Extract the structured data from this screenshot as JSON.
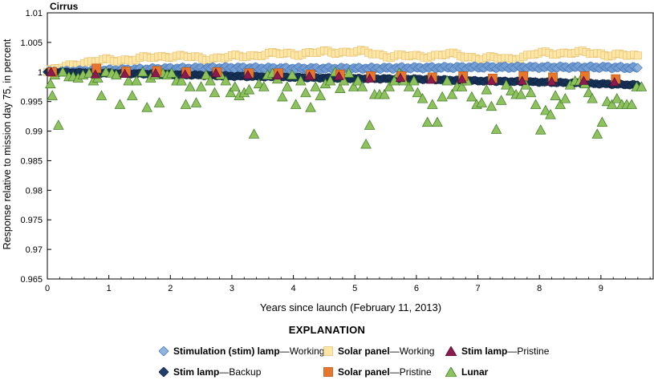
{
  "chart_data": {
    "type": "scatter",
    "title": "Cirrus",
    "xlabel": "Years since launch (February 11, 2013)",
    "ylabel": "Response relative to mission day 75, in percent",
    "xlim": [
      0,
      9.85
    ],
    "ylim": [
      0.965,
      1.01
    ],
    "x_ticks": [
      "0",
      "1",
      "2",
      "3",
      "4",
      "5",
      "6",
      "7",
      "8",
      "9"
    ],
    "y_ticks": [
      "0.965",
      "0.97",
      "0.975",
      "0.98",
      "0.985",
      "0.99",
      "0.995",
      "1",
      "1.005",
      "1.01"
    ],
    "grid": false,
    "legend_title": "EXPLANATION",
    "legend_position": "bottom",
    "series": [
      {
        "name_bold": "Stimulation (stim) lamp",
        "name_rest": "—Working",
        "marker": "diamond",
        "color": "#8fb3de",
        "edge": "#4f7fbf",
        "trend": [
          [
            0,
            1.0
          ],
          [
            1,
            1.0003
          ],
          [
            2,
            1.0006
          ],
          [
            3,
            1.0007
          ],
          [
            4,
            1.0006
          ],
          [
            5,
            1.0006
          ],
          [
            6,
            1.0007
          ],
          [
            7,
            1.0008
          ],
          [
            8,
            1.0008
          ],
          [
            9,
            1.0008
          ],
          [
            9.6,
            1.0007
          ]
        ]
      },
      {
        "name_bold": "Stim lamp",
        "name_rest": "—Backup",
        "marker": "diamond",
        "color": "#1f3f6e",
        "edge": "#0f2440",
        "trend": [
          [
            0,
            1.0
          ],
          [
            1,
            0.9998
          ],
          [
            2,
            0.9996
          ],
          [
            3,
            0.9993
          ],
          [
            4,
            0.9991
          ],
          [
            5,
            0.9989
          ],
          [
            6,
            0.9988
          ],
          [
            7,
            0.9985
          ],
          [
            8,
            0.9983
          ],
          [
            9,
            0.998
          ],
          [
            9.6,
            0.9978
          ]
        ]
      },
      {
        "name_bold": "Solar panel",
        "name_rest": "—Working",
        "marker": "square",
        "color": "#fde6a6",
        "edge": "#e6c274",
        "trend": [
          [
            0,
            1.0
          ],
          [
            0.5,
            1.0015
          ],
          [
            1,
            1.002
          ],
          [
            1.5,
            1.0022
          ],
          [
            2,
            1.0028
          ],
          [
            2.5,
            1.0023
          ],
          [
            3,
            1.0025
          ],
          [
            3.5,
            1.003
          ],
          [
            4,
            1.0031
          ],
          [
            4.5,
            1.0033
          ],
          [
            5,
            1.0035
          ],
          [
            5.5,
            1.0028
          ],
          [
            6,
            1.0026
          ],
          [
            6.5,
            1.003
          ],
          [
            7,
            1.0024
          ],
          [
            7.5,
            1.0022
          ],
          [
            8,
            1.0031
          ],
          [
            8.5,
            1.0033
          ],
          [
            9,
            1.0031
          ],
          [
            9.6,
            1.0026
          ]
        ]
      },
      {
        "name_bold": "Solar panel",
        "name_rest": "—Pristine",
        "marker": "square",
        "color": "#e8772e",
        "edge": "#b85515",
        "x": [
          0.08,
          0.8,
          1.28,
          1.78,
          2.26,
          2.76,
          3.28,
          3.76,
          4.28,
          4.76,
          5.26,
          5.76,
          6.26,
          6.76,
          7.24,
          7.74,
          8.22,
          8.74,
          9.24
        ],
        "y": [
          1.0,
          1.0006,
          1.0001,
          1.0002,
          1.0,
          1.0,
          0.9998,
          0.9998,
          0.9996,
          0.9996,
          0.9993,
          0.9993,
          0.9991,
          0.9993,
          0.9989,
          0.9993,
          0.9991,
          0.9993,
          0.9988
        ]
      },
      {
        "name_bold": "Stim lamp",
        "name_rest": "—Pristine",
        "marker": "triangle",
        "color": "#8b1a4f",
        "edge": "#5a0c30",
        "x": [
          0.06,
          0.78,
          1.26,
          1.76,
          2.24,
          2.74,
          3.26,
          3.74,
          4.26,
          4.74,
          5.24,
          5.74,
          6.24,
          6.74,
          7.22,
          7.72,
          8.2,
          8.72,
          9.22
        ],
        "y": [
          1.0,
          0.9996,
          0.9997,
          0.9998,
          0.9996,
          0.9998,
          0.9995,
          0.9994,
          0.9993,
          0.9993,
          0.9989,
          0.999,
          0.9987,
          0.9988,
          0.9985,
          0.9985,
          0.9984,
          0.9985,
          0.9983
        ]
      },
      {
        "name_bold": "Lunar",
        "name_rest": "",
        "marker": "triangle",
        "color": "#8fc25f",
        "edge": "#3c7a23",
        "x": [
          0.05,
          0.08,
          0.12,
          0.18,
          0.25,
          0.35,
          0.42,
          0.5,
          0.58,
          0.68,
          0.75,
          0.82,
          0.88,
          0.95,
          1.05,
          1.12,
          1.18,
          1.25,
          1.32,
          1.38,
          1.45,
          1.55,
          1.62,
          1.68,
          1.75,
          1.82,
          1.88,
          1.95,
          2.02,
          2.1,
          2.18,
          2.25,
          2.32,
          2.42,
          2.5,
          2.58,
          2.65,
          2.72,
          2.82,
          2.9,
          2.98,
          3.05,
          3.12,
          3.2,
          3.28,
          3.36,
          3.44,
          3.52,
          3.58,
          3.66,
          3.74,
          3.82,
          3.9,
          3.98,
          4.04,
          4.12,
          4.2,
          4.28,
          4.36,
          4.44,
          4.52,
          4.6,
          4.68,
          4.76,
          4.82,
          4.9,
          4.98,
          5.05,
          5.12,
          5.18,
          5.24,
          5.32,
          5.4,
          5.48,
          5.56,
          5.64,
          5.72,
          5.8,
          5.88,
          5.96,
          6.02,
          6.1,
          6.18,
          6.26,
          6.34,
          6.42,
          6.5,
          6.58,
          6.66,
          6.74,
          6.82,
          6.9,
          6.98,
          7.06,
          7.14,
          7.22,
          7.3,
          7.38,
          7.46,
          7.54,
          7.62,
          7.7,
          7.78,
          7.86,
          7.94,
          8.02,
          8.1,
          8.18,
          8.26,
          8.34,
          8.42,
          8.5,
          8.58,
          8.66,
          8.74,
          8.8,
          8.86,
          8.94,
          9.02,
          9.1,
          9.18,
          9.26,
          9.34,
          9.42,
          9.5,
          9.58,
          9.66
        ],
        "y": [
          0.998,
          0.996,
          0.9995,
          0.991,
          1.0,
          0.9992,
          0.9992,
          0.999,
          0.9995,
          0.9998,
          0.9985,
          0.999,
          0.996,
          1.0,
          0.9998,
          0.9995,
          0.9945,
          1.0,
          0.9985,
          0.996,
          0.9985,
          1.0,
          0.994,
          0.999,
          0.9995,
          0.9948,
          0.9998,
          0.9995,
          0.9998,
          0.9985,
          0.9985,
          0.9945,
          0.9975,
          0.9948,
          0.9975,
          0.9995,
          0.9985,
          0.9965,
          0.9995,
          0.9985,
          0.9965,
          0.9975,
          0.996,
          0.9965,
          0.997,
          0.9895,
          0.998,
          0.9975,
          0.9995,
          0.9998,
          0.9988,
          0.9958,
          0.9975,
          0.9995,
          0.9945,
          0.9985,
          0.9965,
          0.994,
          0.9975,
          0.996,
          0.998,
          0.9985,
          1.0,
          0.9972,
          0.9985,
          0.9998,
          0.9975,
          0.9985,
          0.9975,
          0.9878,
          0.991,
          0.9962,
          0.9962,
          0.9962,
          0.9975,
          0.9985,
          0.9998,
          0.9985,
          0.9975,
          0.9985,
          0.9965,
          0.9955,
          0.9915,
          0.9945,
          0.9915,
          0.9958,
          0.9985,
          0.9962,
          0.9975,
          0.9975,
          0.9985,
          0.9958,
          0.9945,
          0.9948,
          0.997,
          0.9942,
          0.9903,
          0.9952,
          0.9978,
          0.9968,
          0.9962,
          0.9962,
          0.9978,
          0.9965,
          0.9945,
          0.9902,
          0.9935,
          0.9928,
          0.996,
          0.9945,
          0.9955,
          0.9978,
          0.9985,
          0.9985,
          0.998,
          0.9965,
          0.9955,
          0.9895,
          0.9915,
          0.995,
          0.9945,
          0.9955,
          0.9945,
          0.9945,
          0.9945,
          0.9975,
          0.9975
        ]
      }
    ]
  }
}
